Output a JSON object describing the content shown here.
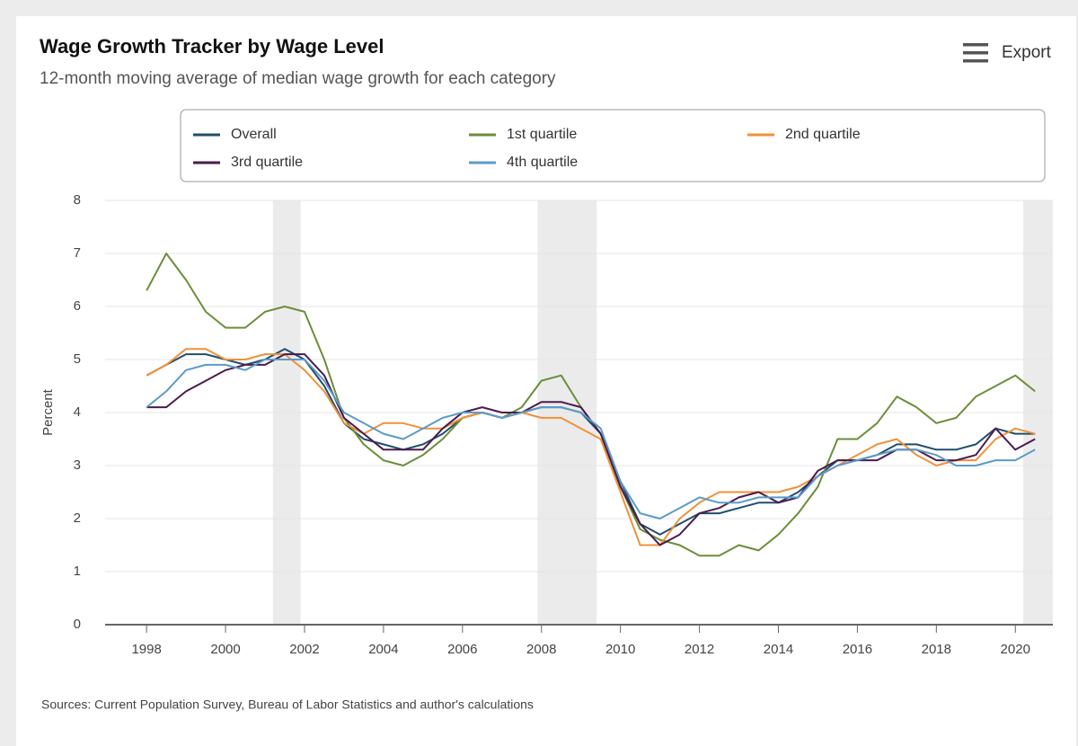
{
  "toolbar": {
    "export": "Export"
  },
  "chart_data": {
    "type": "line",
    "title": "Wage Growth Tracker by Wage Level",
    "subtitle": "12-month moving average of median wage growth for each category",
    "y_label": "Percent",
    "source": "Sources: Current Population Survey, Bureau of Labor Statistics and author's calculations",
    "x": [
      1998,
      1998.5,
      1999,
      1999.5,
      2000,
      2000.5,
      2001,
      2001.5,
      2002,
      2002.5,
      2003,
      2003.5,
      2004,
      2004.5,
      2005,
      2005.5,
      2006,
      2006.5,
      2007,
      2007.5,
      2008,
      2008.5,
      2009,
      2009.5,
      2010,
      2010.5,
      2011,
      2011.5,
      2012,
      2012.5,
      2013,
      2013.5,
      2014,
      2014.5,
      2015,
      2015.5,
      2016,
      2016.5,
      2017,
      2017.5,
      2018,
      2018.5,
      2019,
      2019.5,
      2020,
      2020.5
    ],
    "series": [
      {
        "name": "Overall",
        "color": "#1f4e6e",
        "values": [
          4.7,
          4.9,
          5.1,
          5.1,
          5.0,
          4.9,
          5.0,
          5.2,
          5.0,
          4.5,
          3.8,
          3.5,
          3.4,
          3.3,
          3.4,
          3.6,
          3.9,
          4.0,
          3.9,
          4.0,
          4.1,
          4.1,
          4.0,
          3.6,
          2.7,
          1.9,
          1.7,
          1.9,
          2.1,
          2.1,
          2.2,
          2.3,
          2.3,
          2.5,
          2.8,
          3.1,
          3.1,
          3.2,
          3.4,
          3.4,
          3.3,
          3.3,
          3.4,
          3.7,
          3.6,
          3.6
        ]
      },
      {
        "name": "1st quartile",
        "color": "#6b8e3a",
        "values": [
          6.3,
          7.0,
          6.5,
          5.9,
          5.6,
          5.6,
          5.9,
          6.0,
          5.9,
          5.0,
          3.9,
          3.4,
          3.1,
          3.0,
          3.2,
          3.5,
          3.9,
          4.0,
          3.9,
          4.1,
          4.6,
          4.7,
          4.1,
          3.6,
          2.6,
          1.8,
          1.6,
          1.5,
          1.3,
          1.3,
          1.5,
          1.4,
          1.7,
          2.1,
          2.6,
          3.5,
          3.5,
          3.8,
          4.3,
          4.1,
          3.8,
          3.9,
          4.3,
          4.5,
          4.7,
          4.4
        ]
      },
      {
        "name": "2nd quartile",
        "color": "#f0913a",
        "values": [
          4.7,
          4.9,
          5.2,
          5.2,
          5.0,
          5.0,
          5.1,
          5.1,
          4.8,
          4.4,
          3.8,
          3.6,
          3.8,
          3.8,
          3.7,
          3.7,
          3.9,
          4.0,
          3.9,
          4.0,
          3.9,
          3.9,
          3.7,
          3.5,
          2.5,
          1.5,
          1.5,
          2.0,
          2.3,
          2.5,
          2.5,
          2.5,
          2.5,
          2.6,
          2.8,
          3.0,
          3.2,
          3.4,
          3.5,
          3.2,
          3.0,
          3.1,
          3.1,
          3.5,
          3.7,
          3.6
        ]
      },
      {
        "name": "3rd quartile",
        "color": "#4b1b4e",
        "values": [
          4.1,
          4.1,
          4.4,
          4.6,
          4.8,
          4.9,
          4.9,
          5.1,
          5.1,
          4.7,
          3.9,
          3.6,
          3.3,
          3.3,
          3.3,
          3.7,
          4.0,
          4.1,
          4.0,
          4.0,
          4.2,
          4.2,
          4.1,
          3.6,
          2.6,
          1.9,
          1.5,
          1.7,
          2.1,
          2.2,
          2.4,
          2.5,
          2.3,
          2.4,
          2.9,
          3.1,
          3.1,
          3.1,
          3.3,
          3.3,
          3.1,
          3.1,
          3.2,
          3.7,
          3.3,
          3.5
        ]
      },
      {
        "name": "4th quartile",
        "color": "#5b9bc8",
        "values": [
          4.1,
          4.4,
          4.8,
          4.9,
          4.9,
          4.8,
          5.0,
          5.0,
          5.0,
          4.6,
          4.0,
          3.8,
          3.6,
          3.5,
          3.7,
          3.9,
          4.0,
          4.0,
          3.9,
          4.0,
          4.1,
          4.1,
          4.0,
          3.7,
          2.7,
          2.1,
          2.0,
          2.2,
          2.4,
          2.3,
          2.3,
          2.4,
          2.4,
          2.4,
          2.8,
          3.0,
          3.1,
          3.2,
          3.3,
          3.3,
          3.2,
          3.0,
          3.0,
          3.1,
          3.1,
          3.3
        ]
      }
    ],
    "recessions": [
      [
        2001.2,
        2001.9
      ],
      [
        2007.9,
        2009.4
      ],
      [
        2020.2,
        2020.95
      ]
    ],
    "xlim": [
      1996.95,
      2020.95
    ],
    "xticks": [
      1998,
      2000,
      2002,
      2004,
      2006,
      2008,
      2010,
      2012,
      2014,
      2016,
      2018,
      2020
    ],
    "ylim": [
      0,
      8
    ],
    "yticks": [
      0,
      1,
      2,
      3,
      4,
      5,
      6,
      7,
      8
    ],
    "grid": true
  }
}
